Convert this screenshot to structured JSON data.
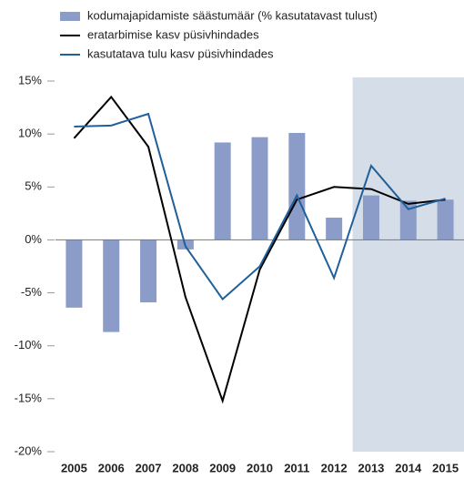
{
  "chart_data": {
    "type": "bar_line",
    "categories": [
      "2005",
      "2006",
      "2007",
      "2008",
      "2009",
      "2010",
      "2011",
      "2012",
      "2013",
      "2014",
      "2015"
    ],
    "shade_from": "2013",
    "shade_color": "#d5dee8",
    "series": [
      {
        "name": "kodumajapidamiste säästumäär (% kasutatavast tulust)",
        "type": "bar",
        "color": "#8b9cc8",
        "values": [
          -6.4,
          -8.7,
          -5.9,
          -0.9,
          9.2,
          9.7,
          10.1,
          2.1,
          4.2,
          3.7,
          3.8
        ]
      },
      {
        "name": "eratarbimise kasv püsivhindades",
        "type": "line",
        "color": "#000000",
        "values": [
          9.6,
          13.5,
          8.8,
          -5.4,
          -15.2,
          -2.8,
          3.8,
          5.0,
          4.8,
          3.4,
          3.8
        ]
      },
      {
        "name": "kasutatava tulu kasv püsivhindades",
        "type": "line",
        "color": "#1f5f9a",
        "values": [
          10.7,
          10.8,
          11.9,
          -0.6,
          -5.6,
          -2.5,
          4.2,
          -3.6,
          7.0,
          2.9,
          3.9
        ]
      }
    ],
    "ylim": [
      -20,
      15
    ],
    "yticks": [
      {
        "value": -20,
        "label": "-20%"
      },
      {
        "value": -15,
        "label": "-15%"
      },
      {
        "value": -10,
        "label": "-10%"
      },
      {
        "value": -5,
        "label": "-5%"
      },
      {
        "value": 0,
        "label": "0%"
      },
      {
        "value": 5,
        "label": "5%"
      },
      {
        "value": 10,
        "label": "10%"
      },
      {
        "value": 15,
        "label": "15%"
      }
    ],
    "grid": false
  }
}
